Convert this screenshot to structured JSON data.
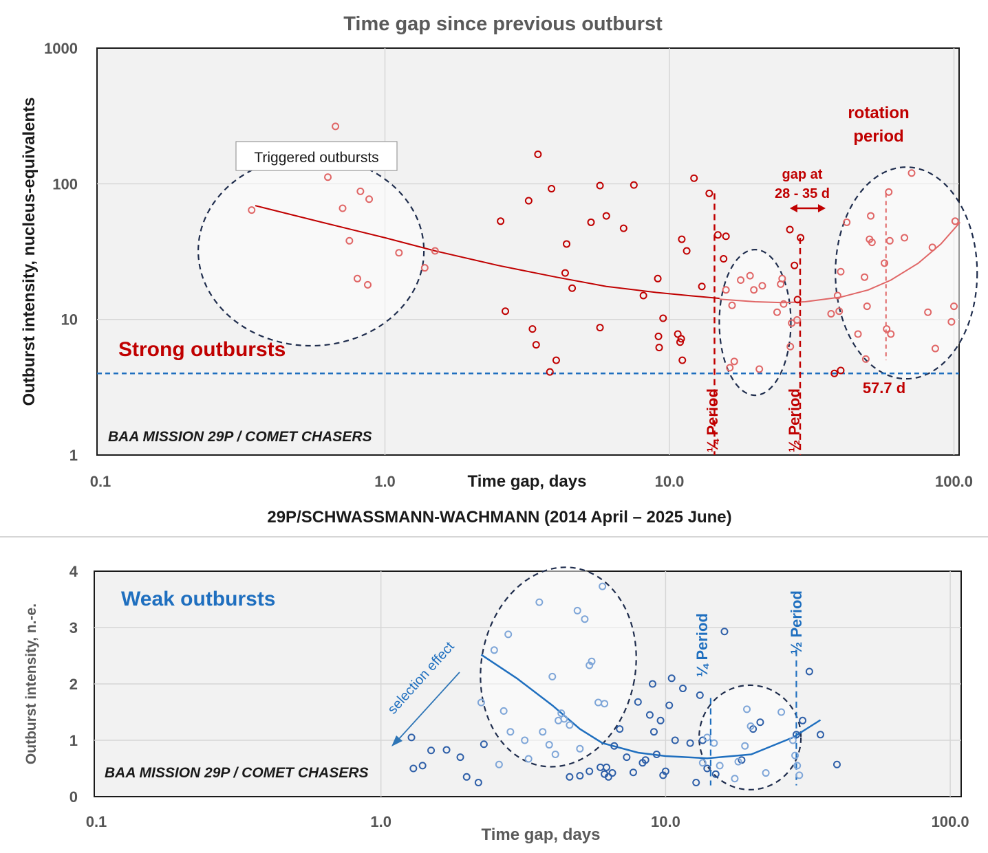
{
  "chart_data": [
    {
      "type": "scatter",
      "title": "Time gap since previous outburst",
      "subtitle": "29P/SCHWASSMANN-WACHMANN (2014 April – 2025 June)",
      "xlabel": "Time gap,  days",
      "ylabel": "Outburst intensity,  nucleus-equivalents",
      "x_scale": "log",
      "y_scale": "log",
      "xlim": [
        0.1,
        110
      ],
      "ylim": [
        1,
        1000
      ],
      "x_ticks": [
        0.1,
        1,
        10,
        100
      ],
      "x_tick_labels": [
        "0.1",
        "1.0",
        "10.0",
        "100.0"
      ],
      "y_ticks": [
        1,
        10,
        100,
        1000
      ],
      "y_tick_labels": [
        "1",
        "10",
        "100",
        "1000"
      ],
      "grid": true,
      "colors": {
        "dark": "#c00000",
        "light": "#e06666",
        "threshold": "#1f6fbf",
        "ellipse": "#1f2d4d"
      },
      "series": [
        {
          "color": "dark",
          "points": [
            [
              2.55,
              53
            ],
            [
              2.65,
              11.5
            ],
            [
              3.2,
              75
            ],
            [
              3.3,
              8.5
            ],
            [
              3.4,
              6.5
            ],
            [
              3.45,
              165
            ],
            [
              3.8,
              4.1
            ],
            [
              3.85,
              92
            ],
            [
              4.0,
              5
            ],
            [
              4.3,
              22
            ],
            [
              4.35,
              36
            ],
            [
              4.55,
              17
            ],
            [
              5.3,
              52
            ],
            [
              5.7,
              97
            ],
            [
              5.7,
              8.7
            ],
            [
              6.0,
              58
            ],
            [
              6.9,
              47
            ],
            [
              7.5,
              98
            ],
            [
              8.1,
              15
            ],
            [
              9.1,
              20
            ],
            [
              9.15,
              7.5
            ],
            [
              9.2,
              6.2
            ],
            [
              9.5,
              10.2
            ],
            [
              10.7,
              7.8
            ],
            [
              10.9,
              6.8
            ],
            [
              11.0,
              7.2
            ],
            [
              11.05,
              39
            ],
            [
              11.1,
              5
            ],
            [
              11.5,
              32
            ],
            [
              12.2,
              110
            ],
            [
              13.0,
              17.5
            ],
            [
              13.8,
              85
            ],
            [
              14.8,
              42
            ],
            [
              15.5,
              28
            ],
            [
              15.8,
              41
            ],
            [
              26.5,
              46
            ],
            [
              27.5,
              25
            ],
            [
              28.2,
              14
            ],
            [
              28.9,
              40
            ]
          ]
        },
        {
          "color": "light",
          "points": [
            [
              0.34,
              64
            ],
            [
              0.63,
              112
            ],
            [
              0.67,
              265
            ],
            [
              0.71,
              66
            ],
            [
              0.75,
              38
            ],
            [
              0.8,
              20
            ],
            [
              0.82,
              88
            ],
            [
              0.87,
              18
            ],
            [
              0.88,
              77
            ],
            [
              1.12,
              31
            ],
            [
              1.38,
              24
            ],
            [
              1.5,
              32
            ],
            [
              15.8,
              16.5
            ],
            [
              16.3,
              4.4
            ],
            [
              16.6,
              12.7
            ],
            [
              16.9,
              4.9
            ],
            [
              17.8,
              19.5
            ],
            [
              19.2,
              21
            ],
            [
              19.8,
              16.5
            ],
            [
              20.7,
              4.3
            ],
            [
              21.2,
              17.7
            ],
            [
              23.9,
              11.3
            ],
            [
              24.6,
              18.2
            ],
            [
              24.9,
              20
            ],
            [
              25.2,
              13
            ],
            [
              26.6,
              6.3
            ],
            [
              26.9,
              9.4
            ],
            [
              28.1,
              9.9
            ],
            [
              37,
              11
            ],
            [
              39,
              15
            ],
            [
              39.5,
              11.5
            ],
            [
              40,
              22.5
            ],
            [
              42,
              52
            ],
            [
              46,
              7.8
            ],
            [
              48.5,
              20.5
            ],
            [
              49,
              5.1
            ],
            [
              49.5,
              12.5
            ],
            [
              50.5,
              39
            ],
            [
              51,
              58
            ],
            [
              51.5,
              37
            ],
            [
              57,
              26
            ],
            [
              58,
              8.5
            ],
            [
              59,
              87
            ],
            [
              59.5,
              38
            ],
            [
              60,
              7.8
            ],
            [
              67,
              40
            ],
            [
              71,
              120
            ],
            [
              81,
              11.3
            ],
            [
              84,
              34
            ],
            [
              86,
              6.1
            ],
            [
              98,
              9.6
            ],
            [
              100,
              12.5
            ],
            [
              101,
              53
            ]
          ]
        },
        {
          "color": "dark",
          "points": [
            [
              38,
              4.0
            ],
            [
              40,
              4.2
            ]
          ]
        }
      ],
      "fits": [
        {
          "color": "dark",
          "x": [
            0.35,
            0.6,
            1.0,
            1.5,
            2.5,
            4,
            6,
            9,
            12,
            15
          ],
          "y": [
            69,
            52,
            40,
            32,
            25,
            20.5,
            17.5,
            15.8,
            14.9,
            14.3
          ]
        },
        {
          "color": "light",
          "x": [
            15,
            20,
            25,
            30,
            40,
            50,
            60,
            75,
            90,
            105
          ],
          "y": [
            14.1,
            13.5,
            13.3,
            13.5,
            14.6,
            16.5,
            19.5,
            26,
            36,
            52
          ]
        }
      ],
      "threshold": {
        "y": 4,
        "label": "Strong outbursts"
      },
      "vlines": [
        {
          "x": 14.4,
          "y_top": 85,
          "label": "¼ Period"
        },
        {
          "x": 28.8,
          "y_top": 40,
          "label": "½ Period"
        },
        {
          "x": 57.7,
          "y_top": 85,
          "label": "57.7 d"
        }
      ],
      "annotations": {
        "box": "Triggered outbursts",
        "gap_label_1": "gap at",
        "gap_label_2": "28 - 35 d",
        "gap_range": [
          28,
          35
        ],
        "rotation_1": "rotation",
        "rotation_2": "period",
        "credit": "BAA MISSION 29P / COMET CHASERS"
      }
    },
    {
      "type": "scatter",
      "xlabel": "Time gap,  days",
      "ylabel": "Outburst intensity,  n.-e.",
      "x_scale": "log",
      "y_scale": "linear",
      "xlim": [
        0.1,
        110
      ],
      "ylim": [
        0,
        4
      ],
      "x_ticks": [
        0.1,
        1,
        10,
        100
      ],
      "x_tick_labels": [
        "0.1",
        "1.0",
        "10.0",
        "100.0"
      ],
      "y_ticks": [
        0,
        1,
        2,
        3,
        4
      ],
      "y_tick_labels": [
        "0",
        "1",
        "2",
        "3",
        "4"
      ],
      "grid": true,
      "colors": {
        "dark": "#2e5fa8",
        "light": "#7fa6d8",
        "ellipse": "#1f2d4d"
      },
      "series": [
        {
          "color": "dark",
          "points": [
            [
              1.28,
              1.05
            ],
            [
              1.3,
              0.5
            ],
            [
              1.4,
              0.55
            ],
            [
              1.5,
              0.82
            ],
            [
              1.7,
              0.83
            ],
            [
              1.9,
              0.7
            ],
            [
              2.0,
              0.35
            ],
            [
              2.2,
              0.25
            ],
            [
              2.3,
              0.93
            ],
            [
              4.6,
              0.35
            ],
            [
              5.0,
              0.37
            ],
            [
              5.4,
              0.45
            ],
            [
              5.9,
              0.52
            ],
            [
              6.1,
              0.4
            ],
            [
              6.2,
              0.52
            ],
            [
              6.3,
              0.35
            ],
            [
              6.5,
              0.42
            ],
            [
              6.6,
              0.9
            ],
            [
              6.9,
              1.2
            ],
            [
              7.3,
              0.7
            ],
            [
              7.7,
              0.43
            ],
            [
              8.0,
              1.68
            ],
            [
              8.3,
              0.6
            ],
            [
              8.5,
              0.65
            ],
            [
              8.8,
              1.45
            ],
            [
              9.0,
              2.0
            ],
            [
              9.1,
              1.15
            ],
            [
              9.3,
              0.75
            ],
            [
              9.6,
              1.35
            ],
            [
              9.8,
              0.38
            ],
            [
              10.0,
              0.45
            ],
            [
              10.3,
              1.62
            ],
            [
              10.5,
              2.1
            ],
            [
              10.8,
              1.0
            ],
            [
              11.5,
              1.92
            ],
            [
              12.2,
              0.95
            ],
            [
              12.8,
              0.25
            ],
            [
              13.2,
              1.8
            ],
            [
              13.5,
              1.0
            ],
            [
              14.0,
              0.5
            ],
            [
              15.0,
              0.4
            ],
            [
              16.1,
              2.93
            ],
            [
              18.5,
              0.65
            ],
            [
              20.3,
              1.2
            ],
            [
              21.5,
              1.32
            ],
            [
              28.8,
              1.1
            ],
            [
              30.3,
              1.35
            ],
            [
              32.0,
              2.22
            ],
            [
              35.0,
              1.1
            ],
            [
              40.0,
              0.57
            ]
          ]
        },
        {
          "color": "light",
          "points": [
            [
              2.25,
              1.67
            ],
            [
              2.5,
              2.6
            ],
            [
              2.6,
              0.57
            ],
            [
              2.7,
              1.52
            ],
            [
              2.8,
              2.88
            ],
            [
              2.85,
              1.15
            ],
            [
              3.2,
              1.0
            ],
            [
              3.3,
              0.67
            ],
            [
              3.6,
              3.45
            ],
            [
              3.7,
              1.15
            ],
            [
              3.9,
              0.92
            ],
            [
              4.0,
              2.13
            ],
            [
              4.1,
              0.75
            ],
            [
              4.2,
              1.35
            ],
            [
              4.3,
              1.48
            ],
            [
              4.4,
              1.38
            ],
            [
              4.6,
              1.27
            ],
            [
              4.9,
              3.3
            ],
            [
              5.0,
              0.85
            ],
            [
              5.2,
              3.15
            ],
            [
              5.4,
              2.33
            ],
            [
              5.5,
              2.4
            ],
            [
              5.8,
              1.67
            ],
            [
              6.0,
              3.73
            ],
            [
              6.1,
              1.65
            ],
            [
              13.5,
              0.6
            ],
            [
              14.0,
              1.05
            ],
            [
              14.8,
              0.95
            ],
            [
              15.5,
              0.55
            ],
            [
              17.5,
              0.32
            ],
            [
              18.0,
              0.62
            ],
            [
              19.0,
              0.9
            ],
            [
              19.3,
              1.55
            ],
            [
              19.9,
              1.25
            ],
            [
              22.5,
              0.42
            ],
            [
              25.5,
              1.5
            ],
            [
              28.0,
              1.0
            ],
            [
              28.5,
              0.73
            ],
            [
              29.0,
              0.55
            ],
            [
              29.5,
              0.38
            ]
          ]
        }
      ],
      "fits": [
        {
          "color": "dark",
          "x": [
            2.25,
            3,
            4,
            5,
            6,
            8,
            10,
            14,
            20,
            28,
            35
          ],
          "y": [
            2.52,
            2.1,
            1.62,
            1.2,
            0.95,
            0.78,
            0.72,
            0.68,
            0.75,
            1.05,
            1.36
          ]
        }
      ],
      "vlines": [
        {
          "x": 14.4,
          "y_top": 1.75,
          "label": "¼ Period"
        },
        {
          "x": 28.8,
          "y_top": 2.6,
          "label": "½ Period"
        }
      ],
      "annotations": {
        "label": "Weak outbursts",
        "selection": "selection effect",
        "credit": "BAA MISSION 29P / COMET CHASERS"
      }
    }
  ]
}
